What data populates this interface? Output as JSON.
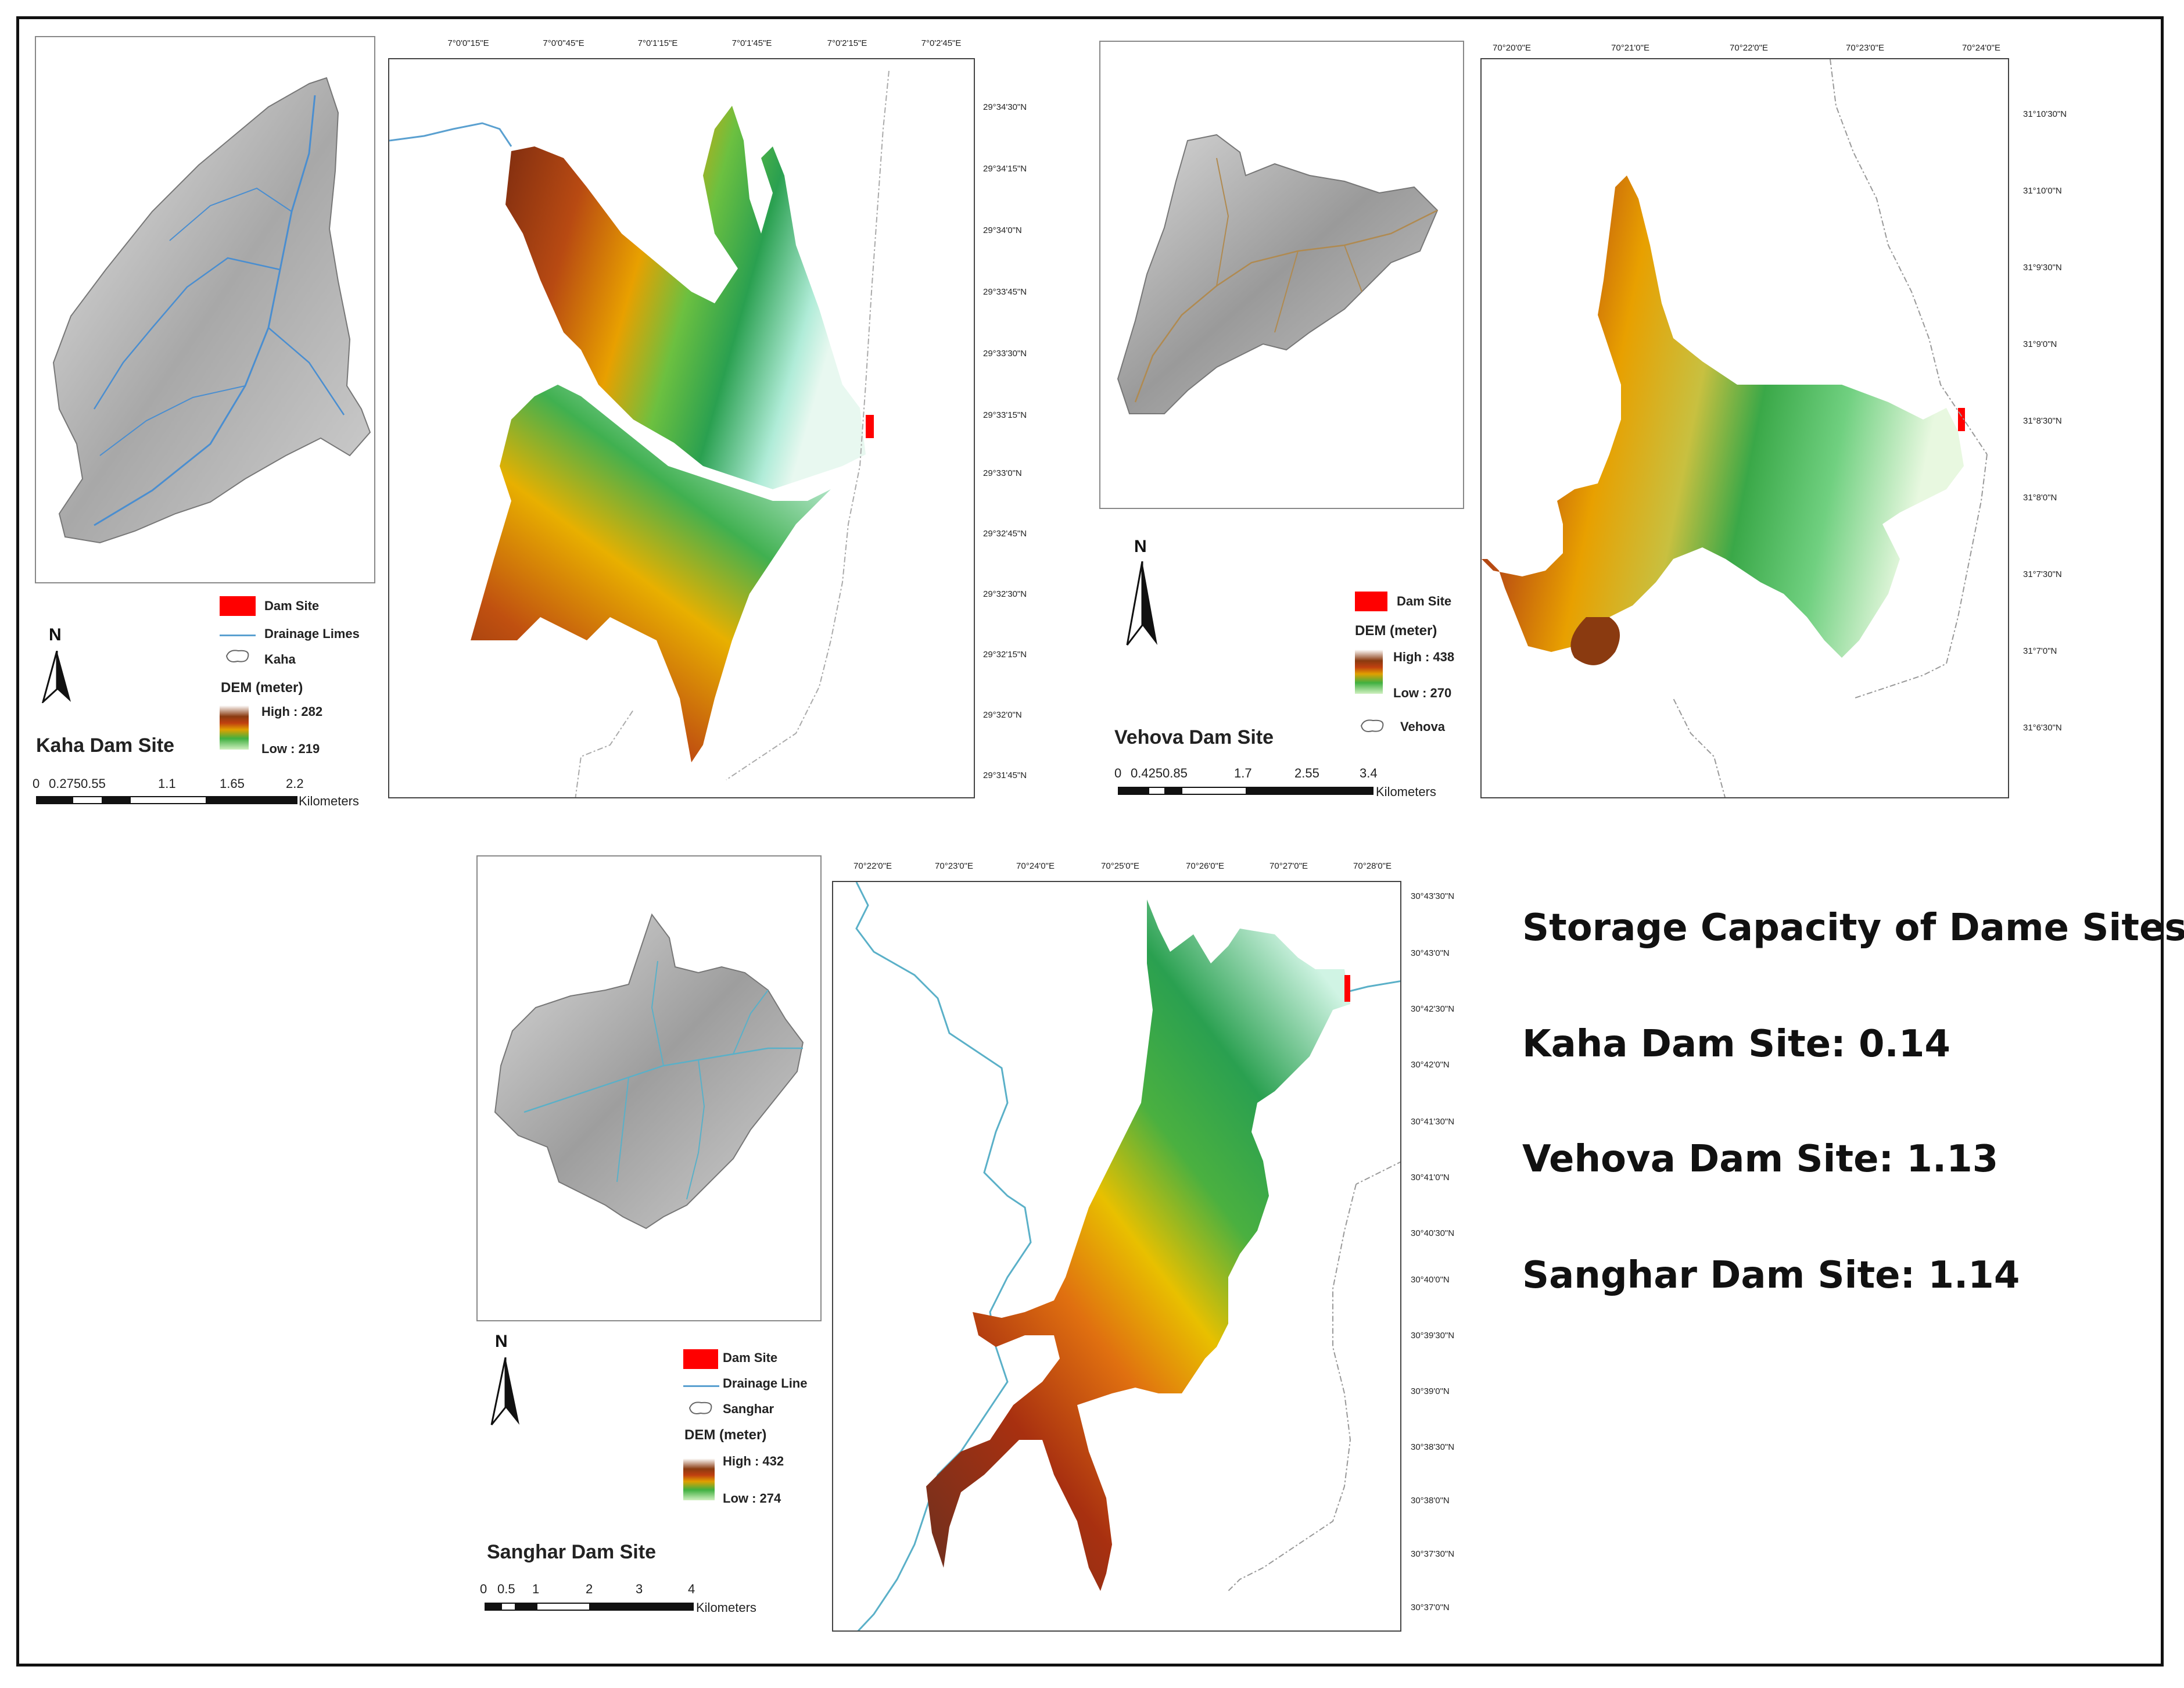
{
  "kaha": {
    "title": "Kaha Dam Site",
    "legend": {
      "dam_site": "Dam Site",
      "drainage": "Drainage Limes",
      "boundary": "Kaha",
      "dem_title": "DEM (meter)",
      "high": "High : 282",
      "low": "Low : 219"
    },
    "north": "N",
    "scale": {
      "labels": [
        "0",
        "0.2750.55",
        "1.1",
        "1.65",
        "2.2"
      ],
      "unit": "Kilometers"
    },
    "lon_ticks": [
      "7°0'0\"15\"E",
      "7°0'0\"45\"E",
      "7°0'1'15\"E",
      "7°0'1'45\"E",
      "7°0'2'15\"E",
      "7°0'2'45\"E"
    ],
    "lat_ticks": [
      "29°34'30\"N",
      "29°34'15\"N",
      "29°34'0\"N",
      "29°33'45\"N",
      "29°33'30\"N",
      "29°33'15\"N",
      "29°33'0\"N",
      "29°32'45\"N",
      "29°32'30\"N",
      "29°32'15\"N",
      "29°32'0\"N",
      "29°31'45\"N"
    ]
  },
  "vehova": {
    "title": "Vehova Dam Site",
    "legend": {
      "dam_site": "Dam Site",
      "dem_title": "DEM (meter)",
      "high": "High : 438",
      "low": "Low : 270",
      "boundary": "Vehova"
    },
    "north": "N",
    "scale": {
      "labels": [
        "0",
        "0.4250.85",
        "1.7",
        "2.55",
        "3.4"
      ],
      "unit": "Kilometers"
    },
    "lon_ticks": [
      "70°20'0\"E",
      "70°21'0\"E",
      "70°22'0\"E",
      "70°23'0\"E",
      "70°24'0\"E"
    ],
    "lat_ticks": [
      "31°10'30\"N",
      "31°10'0\"N",
      "31°9'30\"N",
      "31°9'0\"N",
      "31°8'30\"N",
      "31°8'0\"N",
      "31°7'30\"N",
      "31°7'0\"N",
      "31°6'30\"N"
    ]
  },
  "sanghar": {
    "title": "Sanghar Dam Site",
    "legend": {
      "dam_site": "Dam Site",
      "drainage": "Drainage Line",
      "boundary": "Sanghar",
      "dem_title": "DEM (meter)",
      "high": "High : 432",
      "low": "Low : 274"
    },
    "north": "N",
    "scale": {
      "labels": [
        "0",
        "0.5",
        "1",
        "2",
        "3",
        "4"
      ],
      "unit": "Kilometers"
    },
    "lon_ticks": [
      "70°22'0\"E",
      "70°23'0\"E",
      "70°24'0\"E",
      "70°25'0\"E",
      "70°26'0\"E",
      "70°27'0\"E",
      "70°28'0\"E"
    ],
    "lat_ticks": [
      "30°43'30\"N",
      "30°43'0\"N",
      "30°42'30\"N",
      "30°42'0\"N",
      "30°41'30\"N",
      "30°41'0\"N",
      "30°40'30\"N",
      "30°40'0\"N",
      "30°39'30\"N",
      "30°39'0\"N",
      "30°38'30\"N",
      "30°38'0\"N",
      "30°37'30\"N",
      "30°37'0\"N"
    ]
  },
  "storage": {
    "heading": "Storage Capacity of Dame Sites",
    "kaha": "Kaha Dam Site: 0.14",
    "vehova": "Vehova Dam Site: 1.13",
    "sanghar": "Sanghar Dam Site: 1.14"
  },
  "colors": {
    "dam": "#ff0000",
    "drainage": "#5aa0d0",
    "dem_high": "#8a3a10",
    "dem_mid": "#e0a000",
    "dem_low": "#40b040"
  }
}
